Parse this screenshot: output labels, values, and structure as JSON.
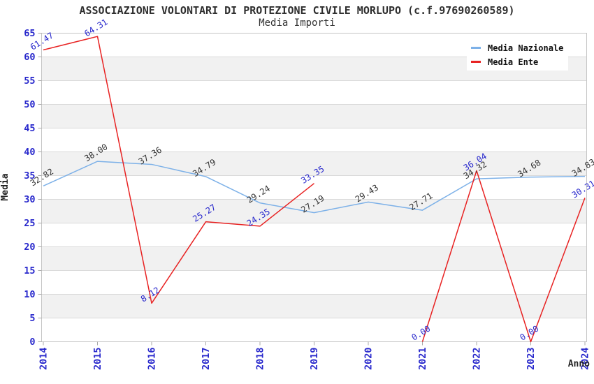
{
  "header": {
    "title": "ASSOCIAZIONE VOLONTARI DI PROTEZIONE CIVILE MORLUPO (c.f.97690260589)",
    "subtitle": "Media Importi"
  },
  "axes": {
    "y_title": "Media",
    "x_title": "Anno"
  },
  "style": {
    "band_gray": "#f1f1f1",
    "band_white": "#ffffff",
    "gridline": "#d9d9d9",
    "plot_border": "#c5c5c5",
    "tick_mark": "#a8a8a8",
    "tick_label_color": "#2828cc",
    "title_color": "#2f2f2f"
  },
  "chart_data": {
    "type": "line",
    "title": "ASSOCIAZIONE VOLONTARI DI PROTEZIONE CIVILE MORLUPO (c.f.97690260589)",
    "subtitle": "Media Importi",
    "xlabel": "Anno",
    "ylabel": "Media",
    "categories": [
      "2014",
      "2015",
      "2016",
      "2017",
      "2018",
      "2019",
      "2020",
      "2021",
      "2022",
      "2023",
      "2024"
    ],
    "series": [
      {
        "name": "Media Nazionale",
        "color": "#7db1e8",
        "label_color": "#333333",
        "values": [
          32.82,
          38.0,
          37.36,
          34.79,
          29.24,
          27.19,
          29.43,
          27.71,
          34.32,
          34.68,
          34.83
        ],
        "labels": [
          "32.82",
          "38.00",
          "37.36",
          "34.79",
          "29.24",
          "27.19",
          "29.43",
          "27.71",
          "34.32",
          "34.68",
          "34.83"
        ]
      },
      {
        "name": "Media Ente",
        "color": "#e82222",
        "label_color": "#2828cc",
        "values": [
          61.47,
          64.31,
          8.12,
          25.27,
          24.35,
          33.35,
          null,
          0.0,
          36.04,
          0.0,
          30.31
        ],
        "labels": [
          "61.47",
          "64.31",
          "8.12",
          "25.27",
          "24.35",
          "33.35",
          null,
          "0.00",
          "36.04",
          "0.00",
          "30.31"
        ]
      }
    ],
    "ylim": [
      0,
      65
    ],
    "yticks": [
      0,
      5,
      10,
      15,
      20,
      25,
      30,
      35,
      40,
      45,
      50,
      55,
      60,
      65
    ],
    "grid": "horizontal-bands-5",
    "legend_position": "top-right",
    "legend_entries": [
      "Media Nazionale",
      "Media Ente"
    ]
  }
}
